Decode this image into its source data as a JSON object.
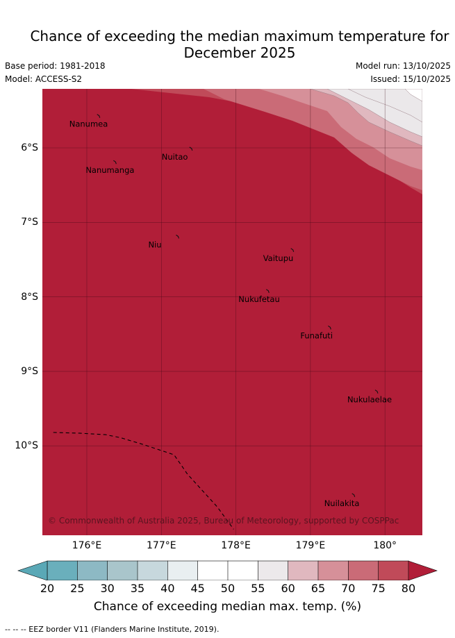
{
  "header": {
    "title_line1": "Chance of exceeding the median maximum temperature for",
    "title_line2": "December 2025",
    "base_period": "Base period: 1981-2018",
    "model": "Model: ACCESS-S2",
    "model_run": "Model run: 13/10/2025",
    "issued": "Issued: 15/10/2025"
  },
  "map": {
    "lon_range": [
      175.5,
      180.5
    ],
    "lat_range": [
      -11.2,
      -5.2
    ],
    "x_ticks": [
      {
        "value": 176,
        "label": "176°E"
      },
      {
        "value": 177,
        "label": "177°E"
      },
      {
        "value": 178,
        "label": "178°E"
      },
      {
        "value": 179,
        "label": "179°E"
      },
      {
        "value": 180,
        "label": "180°"
      }
    ],
    "y_ticks": [
      {
        "value": -6,
        "label": "6°S"
      },
      {
        "value": -7,
        "label": "7°S"
      },
      {
        "value": -8,
        "label": "8°S"
      },
      {
        "value": -9,
        "label": "9°S"
      },
      {
        "value": -10,
        "label": "10°S"
      }
    ],
    "places": [
      {
        "name": "Nanumea",
        "lon": 176.1,
        "lat": -5.68
      },
      {
        "name": "Nuitao",
        "lon": 177.34,
        "lat": -6.12
      },
      {
        "name": "Nanumanga",
        "lon": 176.32,
        "lat": -6.3
      },
      {
        "name": "Niu",
        "lon": 177.16,
        "lat": -7.3
      },
      {
        "name": "Vaitupu",
        "lon": 178.7,
        "lat": -7.48
      },
      {
        "name": "Nukufetau",
        "lon": 178.37,
        "lat": -8.03
      },
      {
        "name": "Funafuti",
        "lon": 179.2,
        "lat": -8.52
      },
      {
        "name": "Nukulaelae",
        "lon": 179.83,
        "lat": -9.38
      },
      {
        "name": "Nuilakita",
        "lon": 179.52,
        "lat": -10.77
      }
    ],
    "credit": "© Commonwealth of Australia 2025, Bureau of Meteorology, supported by COSPPac",
    "eez_border_lonlat": [
      [
        175.55,
        -9.82
      ],
      [
        175.9,
        -9.83
      ],
      [
        176.25,
        -9.85
      ],
      [
        176.45,
        -9.89
      ],
      [
        176.75,
        -9.98
      ],
      [
        177.17,
        -10.12
      ],
      [
        177.35,
        -10.38
      ],
      [
        177.55,
        -10.6
      ],
      [
        177.75,
        -10.82
      ],
      [
        177.97,
        -11.12
      ]
    ],
    "shading": {
      "note": "probability bands (%) drawn as nested boundaries from NE corner",
      "bands": [
        {
          "from": 75,
          "to": 80,
          "color": "#c04a59"
        },
        {
          "from": 70,
          "to": 75,
          "color": "#ca6b77"
        },
        {
          "from": 65,
          "to": 70,
          "color": "#d69099"
        },
        {
          "from": 60,
          "to": 65,
          "color": "#e0b8bf"
        },
        {
          "from": 55,
          "to": 60,
          "color": "#ebe8ea"
        }
      ],
      "base_color": "#b11e38",
      "upper_color": "#ffffff"
    }
  },
  "colorbar": {
    "tick_labels": [
      "20",
      "25",
      "30",
      "35",
      "40",
      "45",
      "50",
      "55",
      "60",
      "65",
      "70",
      "75",
      "80"
    ],
    "colors": [
      "#6aafbc",
      "#8db9c4",
      "#a9c5cb",
      "#c7d8dd",
      "#e9eff1",
      "#ffffff",
      "#ffffff",
      "#ece9eb",
      "#e0b8bf",
      "#d69099",
      "#ca6b77",
      "#c04a59"
    ],
    "low_extend_color": "#5aa8b6",
    "high_extend_color": "#b11e38",
    "label": "Chance of exceeding median max. temp. (%)"
  },
  "footnote": "-- -- -- EEZ border V11 (Flanders Marine Institute, 2019)."
}
